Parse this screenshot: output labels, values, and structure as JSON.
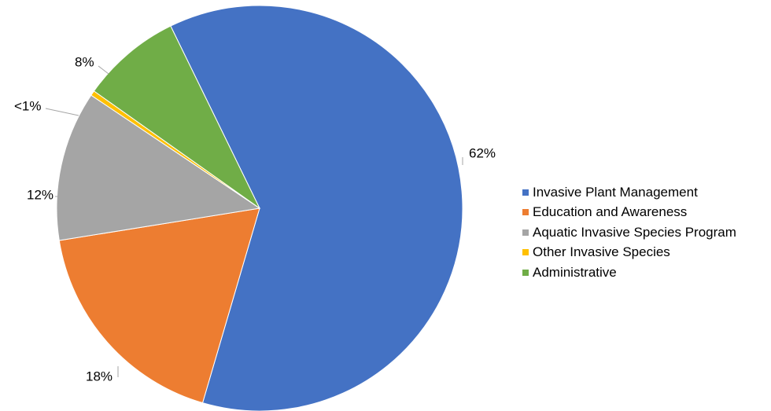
{
  "chart_data": {
    "type": "pie",
    "title": "",
    "start_angle_deg": 334,
    "slices": [
      {
        "label": "Invasive Plant Management",
        "value": 62,
        "display": "62%",
        "color": "#4472C4"
      },
      {
        "label": "Education and Awareness",
        "value": 18,
        "display": "18%",
        "color": "#ED7D31"
      },
      {
        "label": "Aquatic Invasive Species Program",
        "value": 12,
        "display": "12%",
        "color": "#A5A5A5"
      },
      {
        "label": "Other Invasive Species",
        "value": 0.4,
        "display": "<1%",
        "color": "#FFC000"
      },
      {
        "label": "Administrative",
        "value": 8,
        "display": "8%",
        "color": "#70AD47"
      }
    ],
    "legend_position": "right",
    "data_labels": "outside with leader lines"
  }
}
